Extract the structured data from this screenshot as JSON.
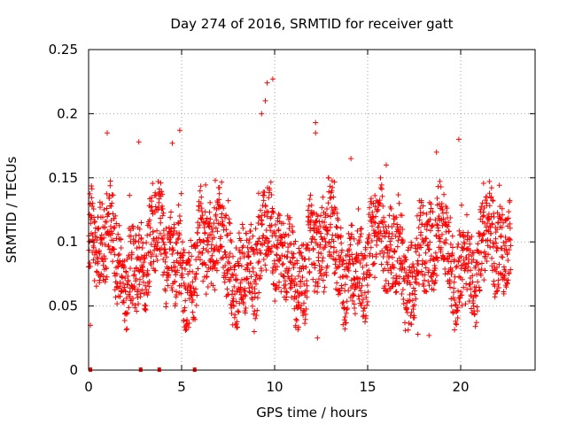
{
  "chart_data": {
    "type": "scatter",
    "title": "Day 274 of 2016, SRMTID for receiver gatt",
    "xlabel": "GPS time / hours",
    "ylabel": "SRMTID / TECUs",
    "xlim": [
      0,
      24
    ],
    "ylim": [
      0,
      0.25
    ],
    "x_ticks": [
      0,
      5,
      10,
      15,
      20
    ],
    "x_tick_labels": [
      "0",
      "5",
      "10",
      "15",
      "20"
    ],
    "y_ticks": [
      0,
      0.05,
      0.1,
      0.15,
      0.2,
      0.25
    ],
    "y_tick_labels": [
      "0",
      "0.05",
      "0.1",
      "0.15",
      "0.2",
      "0.25"
    ],
    "grid": true,
    "marker": "plus",
    "color": "#ff0000",
    "time_range_hours": [
      0,
      22.7
    ],
    "sample_step_hours": 0.01,
    "typical_range": [
      0.03,
      0.15
    ],
    "notable_points": [
      {
        "x": 9.6,
        "y": 0.224
      },
      {
        "x": 9.9,
        "y": 0.227
      },
      {
        "x": 9.5,
        "y": 0.21
      },
      {
        "x": 9.3,
        "y": 0.2
      },
      {
        "x": 12.2,
        "y": 0.193
      },
      {
        "x": 12.2,
        "y": 0.185
      },
      {
        "x": 4.9,
        "y": 0.187
      },
      {
        "x": 4.5,
        "y": 0.177
      },
      {
        "x": 1.0,
        "y": 0.185
      },
      {
        "x": 2.7,
        "y": 0.178
      },
      {
        "x": 19.9,
        "y": 0.18
      },
      {
        "x": 18.7,
        "y": 0.17
      },
      {
        "x": 14.1,
        "y": 0.165
      },
      {
        "x": 16.0,
        "y": 0.16
      },
      {
        "x": 0.1,
        "y": 0.13
      },
      {
        "x": 0.1,
        "y": 0.035
      },
      {
        "x": 12.3,
        "y": 0.025
      },
      {
        "x": 18.3,
        "y": 0.027
      },
      {
        "x": 8.9,
        "y": 0.03
      },
      {
        "x": 17.7,
        "y": 0.028
      }
    ],
    "zero_points_x": [
      0.1,
      2.8,
      3.8,
      5.7
    ]
  }
}
